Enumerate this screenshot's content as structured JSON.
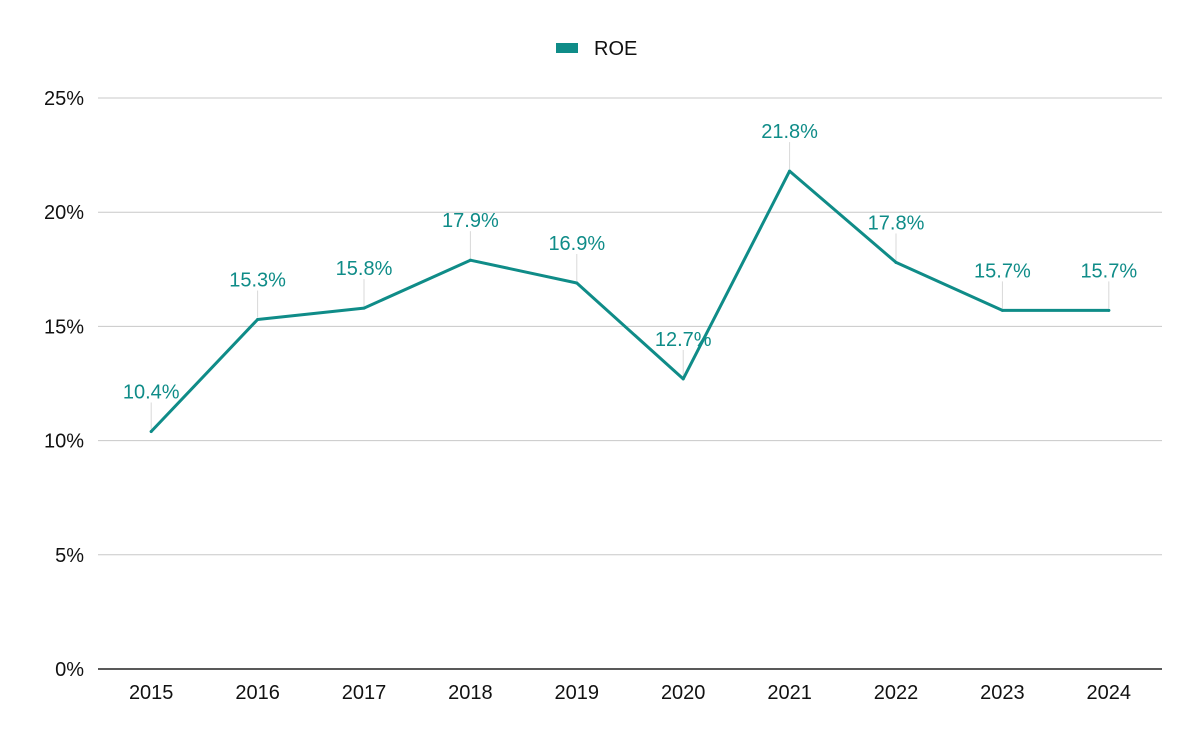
{
  "colors": {
    "series": "#0f8c88",
    "grid": "#c8c8c8",
    "axis": "#222222",
    "text": "#111111",
    "leader": "#d8d8d8"
  },
  "chart_data": {
    "type": "line",
    "title": "",
    "xlabel": "",
    "ylabel": "",
    "categories": [
      "2015",
      "2016",
      "2017",
      "2018",
      "2019",
      "2020",
      "2021",
      "2022",
      "2023",
      "2024"
    ],
    "series": [
      {
        "name": "ROE",
        "values": [
          10.4,
          15.3,
          15.8,
          17.9,
          16.9,
          12.7,
          21.8,
          17.8,
          15.7,
          15.7
        ],
        "labels": [
          "10.4%",
          "15.3%",
          "15.8%",
          "17.9%",
          "16.9%",
          "12.7%",
          "21.8%",
          "17.8%",
          "15.7%",
          "15.7%"
        ]
      }
    ],
    "ylim": [
      0,
      25
    ],
    "yticks": [
      0,
      5,
      10,
      15,
      20,
      25
    ],
    "ytick_labels": [
      "0%",
      "5%",
      "10%",
      "15%",
      "20%",
      "25%"
    ],
    "grid": true,
    "legend": {
      "position": "top-center",
      "entries": [
        "ROE"
      ]
    }
  }
}
